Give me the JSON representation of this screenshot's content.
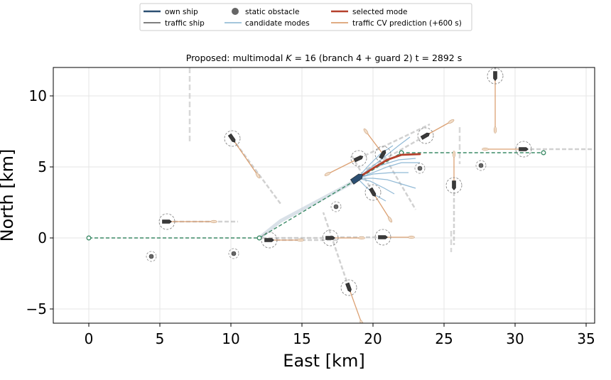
{
  "chart_data": {
    "type": "line",
    "title_prefix": "Proposed: multimodal ",
    "title_k": "K",
    "title_suffix": " = 16 (branch 4 + guard 2)   t =  2892 s",
    "xlabel": "East [km]",
    "ylabel": "North [km]",
    "xlim": [
      -2.5,
      35.6
    ],
    "ylim": [
      -6.0,
      12.0
    ],
    "xticks": [
      0,
      5,
      10,
      15,
      20,
      25,
      30,
      35
    ],
    "yticks": [
      -5,
      0,
      5,
      10
    ],
    "ytick_labels": [
      "−5",
      "0",
      "5",
      "10"
    ],
    "grid": true,
    "legend_position": "top-center",
    "legend": [
      {
        "key": "own",
        "label": "own ship"
      },
      {
        "key": "static",
        "label": "static obstacle"
      },
      {
        "key": "selected",
        "label": "selected mode"
      },
      {
        "key": "traffic",
        "label": "traffic ship"
      },
      {
        "key": "candidate",
        "label": "candidate modes"
      },
      {
        "key": "prediction",
        "label": "traffic CV prediction (+600 s)"
      }
    ],
    "colors": {
      "own": "#2c4f72",
      "traffic": "#555555",
      "static": "#666666",
      "candidate": "#86b3d1",
      "selected": "#b5402c",
      "prediction": "#d6905a",
      "route": "#3b8a66",
      "grid": "#e6e6e6"
    },
    "planned_route": [
      [
        0,
        0
      ],
      [
        12,
        0
      ],
      [
        22,
        6
      ],
      [
        32,
        6
      ]
    ],
    "own_ship_track": [
      [
        12,
        0
      ],
      [
        13.5,
        1.2
      ],
      [
        15,
        2.0
      ],
      [
        16.5,
        2.8
      ],
      [
        18,
        3.6
      ],
      [
        19,
        4.2
      ]
    ],
    "own_ship": {
      "x": 18.9,
      "y": 4.2,
      "heading_deg": 55
    },
    "selected_mode": [
      [
        18.9,
        4.2
      ],
      [
        20.0,
        4.9
      ],
      [
        21.0,
        5.5
      ],
      [
        22.0,
        5.85
      ],
      [
        23.3,
        5.9
      ]
    ],
    "candidate_modes": [
      [
        [
          18.9,
          4.2
        ],
        [
          20.0,
          4.6
        ],
        [
          21.0,
          5.0
        ],
        [
          22.0,
          5.3
        ],
        [
          23.3,
          5.3
        ]
      ],
      [
        [
          18.9,
          4.2
        ],
        [
          20.0,
          4.2
        ],
        [
          21.0,
          4.1
        ],
        [
          22.0,
          3.8
        ],
        [
          23.0,
          3.5
        ]
      ],
      [
        [
          18.9,
          4.2
        ],
        [
          19.8,
          4.0
        ],
        [
          20.8,
          3.5
        ],
        [
          21.5,
          3.1
        ]
      ],
      [
        [
          18.9,
          4.2
        ],
        [
          20.0,
          4.5
        ],
        [
          21.3,
          4.6
        ],
        [
          22.5,
          4.6
        ]
      ],
      [
        [
          18.9,
          4.2
        ],
        [
          19.6,
          5.0
        ],
        [
          20.5,
          5.9
        ],
        [
          21.4,
          6.5
        ]
      ],
      [
        [
          18.9,
          4.2
        ],
        [
          19.5,
          3.6
        ],
        [
          20.2,
          3.0
        ],
        [
          20.9,
          2.6
        ]
      ],
      [
        [
          18.9,
          4.2
        ],
        [
          20.3,
          5.3
        ],
        [
          21.8,
          6.5
        ],
        [
          22.6,
          7.1
        ]
      ],
      [
        [
          18.9,
          4.2
        ],
        [
          20.2,
          5.0
        ],
        [
          21.8,
          5.5
        ],
        [
          23.0,
          5.6
        ]
      ]
    ],
    "traffic_ships": [
      {
        "x": 5.5,
        "y": 1.15,
        "heading_deg": 90,
        "vx": 3.3,
        "vy": 0,
        "trail": [
          [
            5.5,
            1.15
          ],
          [
            10.5,
            1.15
          ]
        ]
      },
      {
        "x": 10.1,
        "y": 7.0,
        "heading_deg": 145,
        "vx": 1.8,
        "vy": -2.6,
        "trail": [
          [
            10.1,
            7.0
          ],
          [
            13.5,
            2.4
          ]
        ]
      },
      {
        "x": 12.7,
        "y": -0.15,
        "heading_deg": 90,
        "vx": 2.2,
        "vy": 0,
        "trail": [
          [
            12.7,
            -0.15
          ],
          [
            17.5,
            -0.15
          ]
        ]
      },
      {
        "x": 17.0,
        "y": 0.0,
        "heading_deg": 90,
        "vx": 2.2,
        "vy": 0,
        "trail": [
          [
            17.0,
            0.0
          ],
          [
            12.0,
            0.0
          ]
        ]
      },
      {
        "x": 18.3,
        "y": -3.5,
        "heading_deg": 160,
        "vx": 0.9,
        "vy": -2.5,
        "trail": [
          [
            18.3,
            -3.5
          ],
          [
            16.5,
            1.8
          ]
        ]
      },
      {
        "x": 19.0,
        "y": 5.6,
        "heading_deg": 65,
        "vx": -2.2,
        "vy": -1.1,
        "trail": [
          [
            19.0,
            5.6
          ],
          [
            24.0,
            8.0
          ]
        ]
      },
      {
        "x": 20.0,
        "y": 3.2,
        "heading_deg": 150,
        "vx": 1.2,
        "vy": -1.9,
        "trail": [
          [
            20.0,
            3.2
          ],
          [
            18.5,
            5.8
          ]
        ]
      },
      {
        "x": 20.7,
        "y": 5.9,
        "heading_deg": 30,
        "vx": -1.2,
        "vy": 1.6,
        "trail": [
          [
            20.7,
            5.9
          ],
          [
            23.0,
            2.0
          ]
        ]
      },
      {
        "x": 20.7,
        "y": 0.05,
        "heading_deg": 90,
        "vx": 2.0,
        "vy": 0,
        "trail": [
          [
            20.7,
            0.05
          ],
          [
            17.5,
            0.05
          ]
        ]
      },
      {
        "x": 23.7,
        "y": 7.2,
        "heading_deg": 60,
        "vx": 1.8,
        "vy": 1.0,
        "trail": [
          [
            23.7,
            7.2
          ],
          [
            19.5,
            4.8
          ]
        ]
      },
      {
        "x": 25.7,
        "y": 3.7,
        "heading_deg": 180,
        "vx": 0,
        "vy": 2.2,
        "trail": [
          [
            25.7,
            3.7
          ],
          [
            25.7,
            -0.5
          ]
        ]
      },
      {
        "x": 28.6,
        "y": 11.4,
        "heading_deg": 180,
        "vx": 0,
        "vy": -3.8,
        "trail": [
          [
            28.6,
            11.4
          ],
          [
            28.6,
            12.0
          ]
        ]
      },
      {
        "x": 30.6,
        "y": 6.25,
        "heading_deg": 90,
        "vx": -2.7,
        "vy": 0,
        "trail": [
          [
            30.6,
            6.25
          ],
          [
            35.5,
            6.25
          ]
        ]
      }
    ],
    "static_obstacles": [
      {
        "x": 4.4,
        "y": -1.3
      },
      {
        "x": 10.2,
        "y": -1.1
      },
      {
        "x": 17.4,
        "y": 2.2
      },
      {
        "x": 23.3,
        "y": 4.9
      },
      {
        "x": 27.6,
        "y": 5.1
      }
    ],
    "faint_trails": [
      [
        [
          7.1,
          12.0
        ],
        [
          7.1,
          6.8
        ]
      ],
      [
        [
          26.1,
          7.8
        ],
        [
          26.1,
          5.2
        ]
      ],
      [
        [
          25.5,
          0.5
        ],
        [
          25.5,
          -1.0
        ]
      ]
    ]
  }
}
